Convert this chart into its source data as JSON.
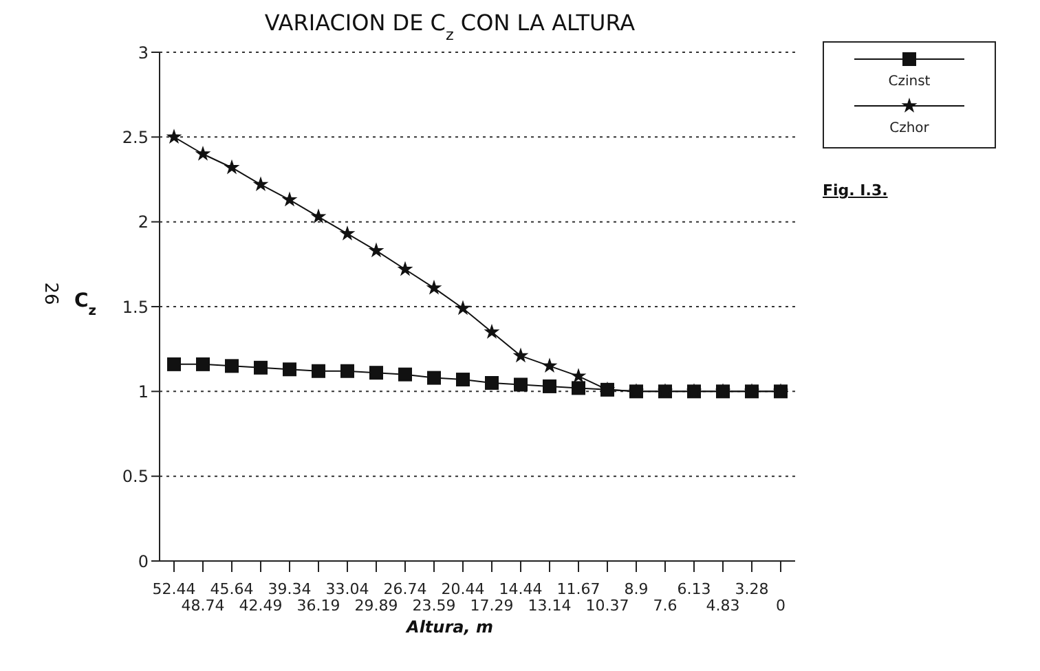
{
  "chart_data": {
    "type": "line",
    "title": "VARIACION DE C$_{z}$ CON LA ALTURA",
    "xlabel": "Altura, m",
    "ylabel": "C$_{z}$",
    "categories": [
      "52.44",
      "48.74",
      "45.64",
      "42.49",
      "39.34",
      "36.19",
      "33.04",
      "29.89",
      "26.74",
      "23.59",
      "20.44",
      "17.29",
      "14.44",
      "13.14",
      "11.67",
      "10.37",
      "8.9",
      "7.6",
      "6.13",
      "4.83",
      "3.28",
      "0"
    ],
    "series": [
      {
        "name": "Czinst",
        "color": "#111111",
        "marker": "square",
        "values": [
          1.16,
          1.16,
          1.15,
          1.14,
          1.13,
          1.12,
          1.12,
          1.11,
          1.1,
          1.08,
          1.07,
          1.05,
          1.04,
          1.03,
          1.02,
          1.01,
          1.0,
          1.0,
          1.0,
          1.0,
          1.0,
          1.0
        ]
      },
      {
        "name": "Czhor",
        "color": "#111111",
        "marker": "star",
        "values": [
          2.5,
          2.4,
          2.32,
          2.22,
          2.13,
          2.03,
          1.93,
          1.83,
          1.72,
          1.61,
          1.49,
          1.35,
          1.21,
          1.15,
          1.09,
          1.01,
          1.0,
          1.0,
          1.0,
          1.0,
          1.0,
          1.0
        ]
      }
    ],
    "ylim": [
      0,
      3
    ],
    "yticks": [
      0,
      0.5,
      1,
      1.5,
      2,
      2.5,
      3
    ],
    "grid": "y",
    "legend": "top right",
    "line_style": "solid",
    "annotations": [
      "Fig. I.3.",
      "26"
    ]
  }
}
